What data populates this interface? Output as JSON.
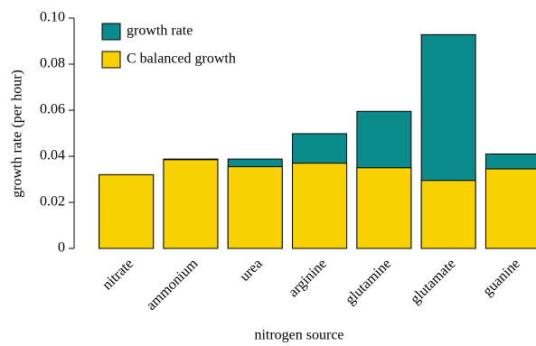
{
  "chart_data": {
    "type": "bar",
    "barmode": "overlay",
    "xlabel": "nitrogen source",
    "ylabel": "growth rate (per hour)",
    "categories": [
      "nitrate",
      "ammonium",
      "urea",
      "arginine",
      "glutamine",
      "glutamate",
      "guanine"
    ],
    "series": [
      {
        "name": "growth rate",
        "color": "#0b8b8b",
        "values": [
          0.032,
          0.0388,
          0.0388,
          0.0498,
          0.0595,
          0.0928,
          0.041
        ]
      },
      {
        "name": "C balanced growth",
        "color": "#f7d100",
        "values": [
          0.032,
          0.0385,
          0.0355,
          0.037,
          0.035,
          0.0295,
          0.0345
        ]
      }
    ],
    "ylim": [
      0,
      0.1
    ],
    "yticks": [
      0,
      0.02,
      0.04,
      0.06,
      0.08,
      {
        "value": 0.1,
        "label": "0.10"
      }
    ],
    "legend": "upper left"
  }
}
